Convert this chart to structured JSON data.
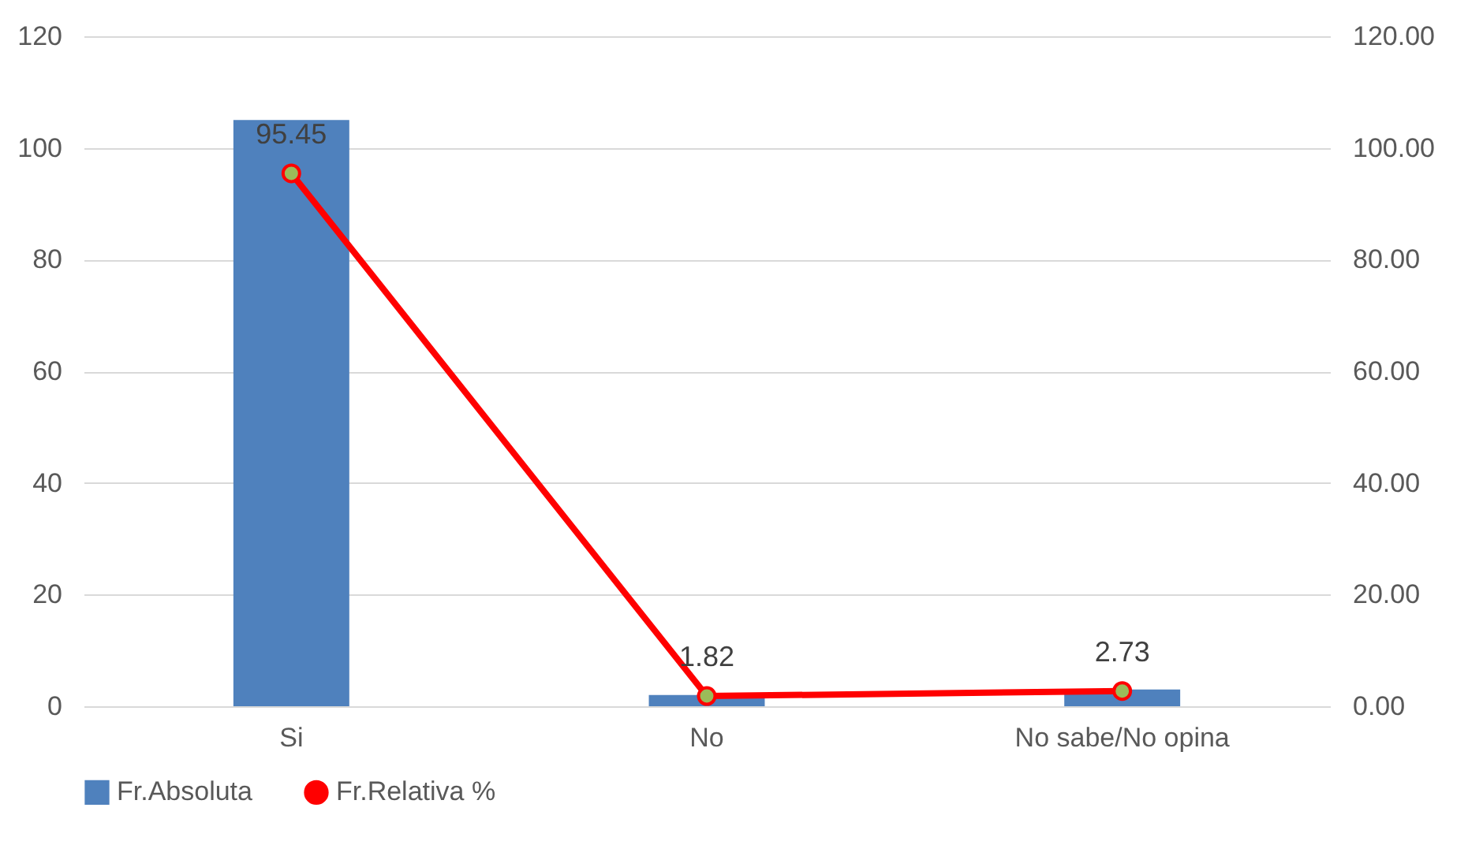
{
  "chart_data": {
    "type": "bar",
    "categories": [
      "Si",
      "No",
      "No sabe/No opina"
    ],
    "series": [
      {
        "name": "Fr.Absoluta",
        "color": "#4f81bd",
        "values": [
          105,
          2,
          3
        ]
      },
      {
        "name": "Fr.Relativa %",
        "type": "line",
        "axis": "y2",
        "color": "#ff0000",
        "marker": "circle",
        "values": [
          95.45,
          1.82,
          2.73
        ],
        "value_labels": [
          "95.45",
          "1.82",
          "2.73"
        ]
      }
    ],
    "ylim": [
      0,
      120
    ],
    "yticks": [
      0,
      20,
      40,
      60,
      80,
      100,
      120
    ],
    "y2lim": [
      0,
      120
    ],
    "y2ticks": [
      {
        "value": 0,
        "label": "0.00"
      },
      {
        "value": 20,
        "label": "20.00"
      },
      {
        "value": 40,
        "label": "40.00"
      },
      {
        "value": 60,
        "label": "60.00"
      },
      {
        "value": 80,
        "label": "80.00"
      },
      {
        "value": 100,
        "label": "100.00"
      },
      {
        "value": 120,
        "label": "120.00"
      }
    ],
    "grid": "y",
    "legend": "bottom"
  }
}
